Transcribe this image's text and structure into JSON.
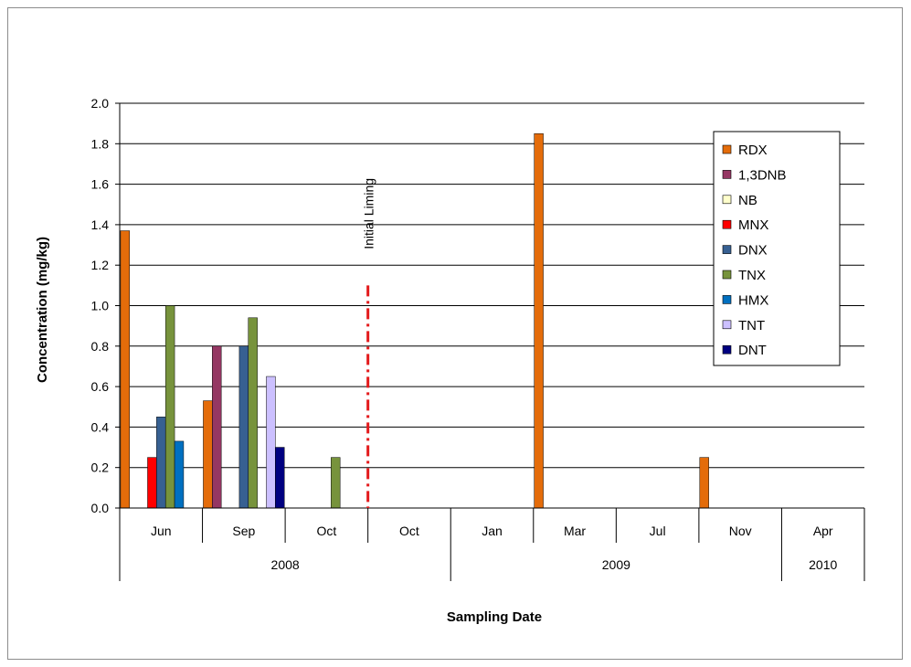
{
  "chart_data": {
    "type": "bar",
    "title": "",
    "xlabel": "Sampling Date",
    "ylabel": "Concentration (mg/kg)",
    "ylim": [
      0,
      2.0
    ],
    "yticks": [
      "0.0",
      "0.2",
      "0.4",
      "0.6",
      "0.8",
      "1.0",
      "1.2",
      "1.4",
      "1.6",
      "1.8",
      "2.0"
    ],
    "grid": true,
    "legend_position": "top-right",
    "categories": [
      "Jun",
      "Sep",
      "Oct",
      "Oct",
      "Jan",
      "Mar",
      "Jul",
      "Nov",
      "Apr"
    ],
    "year_groups": [
      {
        "label": "2008",
        "span": 4
      },
      {
        "label": "2009",
        "span": 4
      },
      {
        "label": "2010",
        "span": 1
      }
    ],
    "series": [
      {
        "name": "RDX",
        "color": "#E46C0A",
        "values": [
          1.37,
          0.53,
          0,
          0,
          0,
          1.85,
          0,
          0.25,
          0
        ]
      },
      {
        "name": "1,3DNB",
        "color": "#953763",
        "values": [
          0,
          0.8,
          0,
          0,
          0,
          0,
          0,
          0,
          0
        ]
      },
      {
        "name": "NB",
        "color": "#FFFFCC",
        "values": [
          0,
          0,
          0,
          0,
          0,
          0,
          0,
          0,
          0
        ]
      },
      {
        "name": "MNX",
        "color": "#FF0000",
        "values": [
          0.25,
          0,
          0,
          0,
          0,
          0,
          0,
          0,
          0
        ]
      },
      {
        "name": "DNX",
        "color": "#376092",
        "values": [
          0.45,
          0.8,
          0,
          0,
          0,
          0,
          0,
          0,
          0
        ]
      },
      {
        "name": "TNX",
        "color": "#77933C",
        "values": [
          1.0,
          0.94,
          0.25,
          0,
          0,
          0,
          0,
          0,
          0
        ]
      },
      {
        "name": "HMX",
        "color": "#0070C0",
        "values": [
          0.33,
          0,
          0,
          0,
          0,
          0,
          0,
          0,
          0
        ]
      },
      {
        "name": "TNT",
        "color": "#CCC0FF",
        "values": [
          0,
          0.65,
          0,
          0,
          0,
          0,
          0,
          0,
          0
        ]
      },
      {
        "name": "DNT",
        "color": "#000080",
        "values": [
          0,
          0.3,
          0,
          0,
          0,
          0,
          0,
          0,
          0
        ]
      }
    ],
    "annotations": [
      {
        "text": "Initial Liming",
        "between_categories": [
          2,
          3
        ],
        "color": "#E31A1C",
        "style": "dash-dot"
      }
    ]
  }
}
